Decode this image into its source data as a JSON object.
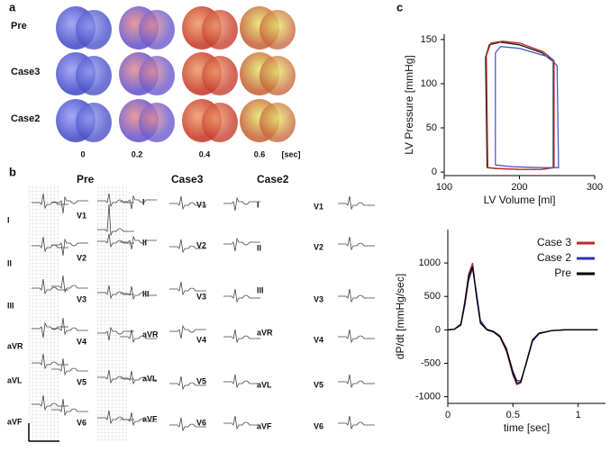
{
  "panels": {
    "a": {
      "label": "a",
      "rows": [
        "Pre",
        "Case3",
        "Case2"
      ],
      "time_labels": [
        "0",
        "0.2",
        "0.4",
        "0.6",
        "[sec]"
      ]
    },
    "b": {
      "label": "b",
      "headers": [
        "Pre",
        "Case3",
        "Case2"
      ],
      "limb_leads": [
        "I",
        "II",
        "III",
        "aVR",
        "aVL",
        "aVF"
      ],
      "chest_leads": [
        "V1",
        "V2",
        "V3",
        "V4",
        "V5",
        "V6"
      ]
    },
    "c": {
      "label": "c"
    }
  },
  "chart_data": [
    {
      "type": "loop",
      "xlabel": "LV Volume [ml]",
      "ylabel": "LV Pressure [mmHg]",
      "xlim": [
        100,
        300
      ],
      "ylim": [
        -4,
        156
      ],
      "xticks": [
        100,
        200,
        300
      ],
      "yticks": [
        0,
        50,
        100,
        150
      ],
      "series": [
        {
          "color": "#1a1a1a",
          "x": [
            157,
            155,
            160,
            175,
            200,
            230,
            245,
            245,
            230,
            200,
            170,
            157
          ],
          "values": [
            5,
            130,
            144,
            147,
            144,
            135,
            125,
            5,
            3,
            3,
            4,
            5
          ]
        },
        {
          "color": "#c0282b",
          "x": [
            158,
            156,
            162,
            178,
            200,
            232,
            246,
            246,
            230,
            200,
            170,
            158
          ],
          "values": [
            5,
            132,
            146,
            148,
            146,
            136,
            126,
            5,
            3,
            3,
            4,
            5
          ]
        },
        {
          "color": "#5058c8",
          "x": [
            168,
            168,
            175,
            200,
            240,
            250,
            252,
            230,
            190,
            168
          ],
          "values": [
            8,
            135,
            142,
            140,
            130,
            120,
            5,
            5,
            6,
            8
          ]
        }
      ]
    },
    {
      "type": "line",
      "xlabel": "time [sec]",
      "ylabel": "dP/dt [mmHg/sec]",
      "xlim": [
        0,
        1.21
      ],
      "ylim": [
        -1100,
        1500
      ],
      "xticks": [
        0,
        0.5,
        1
      ],
      "yticks": [
        -1000,
        -500,
        0,
        500,
        1000
      ],
      "legend": "upper right",
      "x": [
        0,
        0.05,
        0.1,
        0.13,
        0.16,
        0.19,
        0.22,
        0.25,
        0.3,
        0.35,
        0.4,
        0.45,
        0.5,
        0.53,
        0.56,
        0.6,
        0.65,
        0.7,
        0.8,
        0.9,
        1.0,
        1.15
      ],
      "series": [
        {
          "name": "Case 3",
          "color": "#c0282b",
          "values": [
            0,
            10,
            90,
            420,
            830,
            1000,
            520,
            110,
            0,
            -30,
            -110,
            -320,
            -680,
            -820,
            -790,
            -510,
            -160,
            -50,
            -10,
            0,
            0,
            0
          ]
        },
        {
          "name": "Case 2",
          "color": "#2a35a8",
          "values": [
            0,
            8,
            70,
            360,
            740,
            920,
            560,
            140,
            10,
            -20,
            -90,
            -280,
            -620,
            -760,
            -760,
            -520,
            -170,
            -60,
            -10,
            0,
            0,
            0
          ]
        },
        {
          "name": "Pre",
          "color": "#000000",
          "values": [
            0,
            10,
            80,
            400,
            800,
            950,
            500,
            100,
            0,
            -30,
            -100,
            -300,
            -650,
            -800,
            -780,
            -500,
            -150,
            -50,
            -10,
            0,
            0,
            0
          ]
        }
      ]
    }
  ]
}
